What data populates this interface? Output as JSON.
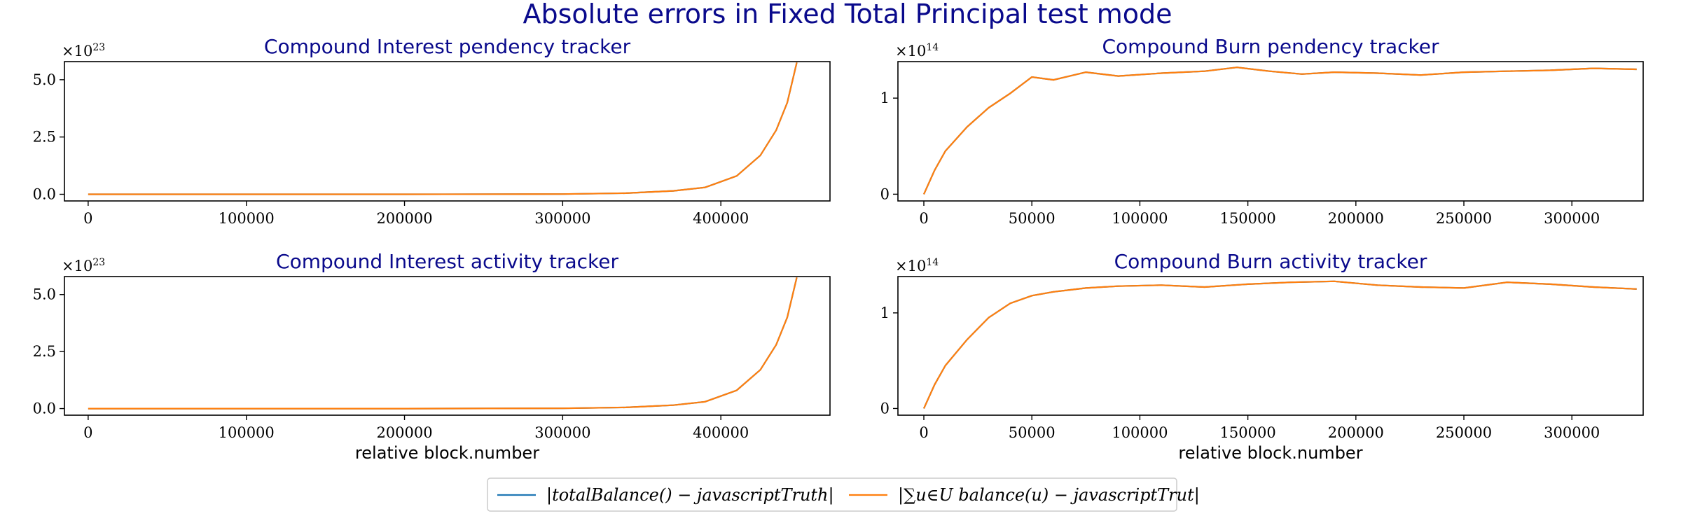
{
  "title": "Absolute errors in Fixed Total Principal test mode",
  "legend": {
    "entries": [
      {
        "label": "|totalBalance() − javascriptTruth|",
        "color": "#1f77b4"
      },
      {
        "label": "|∑u∈U balance(u) − javascriptTrut|",
        "color": "#ff7f0e"
      }
    ]
  },
  "chart_data": [
    {
      "type": "line",
      "title": "Compound Interest pendency tracker",
      "xlabel": "",
      "multiplier": {
        "base": "×10",
        "exp": "23"
      },
      "xlim": [
        -15000,
        469000
      ],
      "ylim": [
        -0.29,
        5.79
      ],
      "xticks": [
        0,
        100000,
        200000,
        300000,
        400000
      ],
      "xtick_labels": [
        "0",
        "100000",
        "200000",
        "300000",
        "400000"
      ],
      "yticks": [
        0,
        2.5,
        5.0
      ],
      "ytick_labels": [
        "0.0",
        "2.5",
        "5.0"
      ],
      "series": [
        {
          "color": "#1f77b4",
          "x": [
            0,
            100000,
            200000,
            300000,
            340000,
            370000,
            390000,
            410000,
            425000,
            435000,
            442000,
            448000
          ],
          "y": [
            0,
            0,
            0,
            0.01,
            0.05,
            0.15,
            0.3,
            0.8,
            1.7,
            2.8,
            4.0,
            5.75
          ]
        },
        {
          "color": "#ff7f0e",
          "x": [
            0,
            100000,
            200000,
            300000,
            340000,
            370000,
            390000,
            410000,
            425000,
            435000,
            442000,
            448000
          ],
          "y": [
            0,
            0,
            0,
            0.01,
            0.05,
            0.15,
            0.3,
            0.8,
            1.7,
            2.8,
            4.0,
            5.75
          ]
        }
      ]
    },
    {
      "type": "line",
      "title": "Compound Burn pendency tracker",
      "xlabel": "",
      "multiplier": {
        "base": "×10",
        "exp": "14"
      },
      "xlim": [
        -12000,
        333000
      ],
      "ylim": [
        -0.07,
        1.38
      ],
      "xticks": [
        0,
        50000,
        100000,
        150000,
        200000,
        250000,
        300000
      ],
      "xtick_labels": [
        "0",
        "50000",
        "100000",
        "150000",
        "200000",
        "250000",
        "300000"
      ],
      "yticks": [
        0,
        1
      ],
      "ytick_labels": [
        "0",
        "1"
      ],
      "series": [
        {
          "color": "#1f77b4",
          "x": [
            0,
            5000,
            10000,
            20000,
            30000,
            40000,
            50000,
            60000,
            75000,
            90000,
            110000,
            130000,
            145000,
            160000,
            175000,
            190000,
            210000,
            230000,
            250000,
            270000,
            290000,
            310000,
            330000
          ],
          "y": [
            0,
            0.25,
            0.45,
            0.7,
            0.9,
            1.05,
            1.22,
            1.19,
            1.27,
            1.23,
            1.26,
            1.28,
            1.32,
            1.28,
            1.25,
            1.27,
            1.26,
            1.24,
            1.27,
            1.28,
            1.29,
            1.31,
            1.3
          ]
        },
        {
          "color": "#ff7f0e",
          "x": [
            0,
            5000,
            10000,
            20000,
            30000,
            40000,
            50000,
            60000,
            75000,
            90000,
            110000,
            130000,
            145000,
            160000,
            175000,
            190000,
            210000,
            230000,
            250000,
            270000,
            290000,
            310000,
            330000
          ],
          "y": [
            0,
            0.25,
            0.45,
            0.7,
            0.9,
            1.05,
            1.22,
            1.19,
            1.27,
            1.23,
            1.26,
            1.28,
            1.32,
            1.28,
            1.25,
            1.27,
            1.26,
            1.24,
            1.27,
            1.28,
            1.29,
            1.31,
            1.3
          ]
        }
      ]
    },
    {
      "type": "line",
      "title": "Compound Interest activity tracker",
      "xlabel": "relative block.number",
      "multiplier": {
        "base": "×10",
        "exp": "23"
      },
      "xlim": [
        -15000,
        469000
      ],
      "ylim": [
        -0.29,
        5.79
      ],
      "xticks": [
        0,
        100000,
        200000,
        300000,
        400000
      ],
      "xtick_labels": [
        "0",
        "100000",
        "200000",
        "300000",
        "400000"
      ],
      "yticks": [
        0,
        2.5,
        5.0
      ],
      "ytick_labels": [
        "0.0",
        "2.5",
        "5.0"
      ],
      "series": [
        {
          "color": "#1f77b4",
          "x": [
            0,
            100000,
            200000,
            300000,
            340000,
            370000,
            390000,
            410000,
            425000,
            435000,
            442000,
            448000
          ],
          "y": [
            0,
            0,
            0,
            0.01,
            0.05,
            0.15,
            0.3,
            0.8,
            1.7,
            2.8,
            4.0,
            5.75
          ]
        },
        {
          "color": "#ff7f0e",
          "x": [
            0,
            100000,
            200000,
            300000,
            340000,
            370000,
            390000,
            410000,
            425000,
            435000,
            442000,
            448000
          ],
          "y": [
            0,
            0,
            0,
            0.01,
            0.05,
            0.15,
            0.3,
            0.8,
            1.7,
            2.8,
            4.0,
            5.75
          ]
        }
      ]
    },
    {
      "type": "line",
      "title": "Compound Burn activity tracker",
      "xlabel": "relative block.number",
      "multiplier": {
        "base": "×10",
        "exp": "14"
      },
      "xlim": [
        -12000,
        333000
      ],
      "ylim": [
        -0.07,
        1.38
      ],
      "xticks": [
        0,
        50000,
        100000,
        150000,
        200000,
        250000,
        300000
      ],
      "xtick_labels": [
        "0",
        "50000",
        "100000",
        "150000",
        "200000",
        "250000",
        "300000"
      ],
      "yticks": [
        0,
        1
      ],
      "ytick_labels": [
        "0",
        "1"
      ],
      "series": [
        {
          "color": "#1f77b4",
          "x": [
            0,
            5000,
            10000,
            20000,
            30000,
            40000,
            50000,
            60000,
            75000,
            90000,
            110000,
            130000,
            150000,
            170000,
            190000,
            210000,
            230000,
            250000,
            270000,
            290000,
            310000,
            330000
          ],
          "y": [
            0,
            0.25,
            0.45,
            0.72,
            0.95,
            1.1,
            1.18,
            1.22,
            1.26,
            1.28,
            1.29,
            1.27,
            1.3,
            1.32,
            1.33,
            1.29,
            1.27,
            1.26,
            1.32,
            1.3,
            1.27,
            1.25
          ]
        },
        {
          "color": "#ff7f0e",
          "x": [
            0,
            5000,
            10000,
            20000,
            30000,
            40000,
            50000,
            60000,
            75000,
            90000,
            110000,
            130000,
            150000,
            170000,
            190000,
            210000,
            230000,
            250000,
            270000,
            290000,
            310000,
            330000
          ],
          "y": [
            0,
            0.25,
            0.45,
            0.72,
            0.95,
            1.1,
            1.18,
            1.22,
            1.26,
            1.28,
            1.29,
            1.27,
            1.3,
            1.32,
            1.33,
            1.29,
            1.27,
            1.26,
            1.32,
            1.3,
            1.27,
            1.25
          ]
        }
      ]
    }
  ]
}
